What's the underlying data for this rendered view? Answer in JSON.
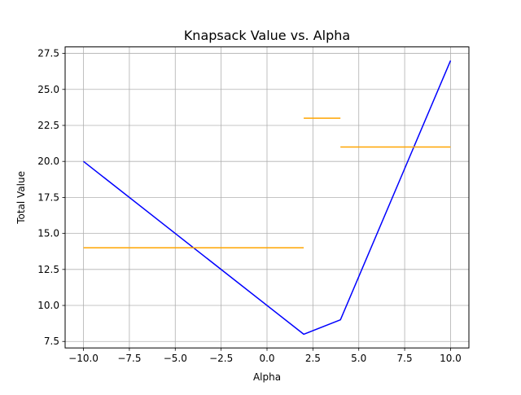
{
  "chart_data": {
    "type": "line",
    "title": "Knapsack Value vs. Alpha",
    "xlabel": "Alpha",
    "ylabel": "Total Value",
    "xlim": [
      -11,
      11
    ],
    "ylim": [
      7.05,
      27.95
    ],
    "grid": true,
    "x_ticks": [
      -10,
      -7.5,
      -5,
      -2.5,
      0,
      2.5,
      5,
      7.5,
      10
    ],
    "y_ticks": [
      7.5,
      10,
      12.5,
      15,
      17.5,
      20,
      22.5,
      25,
      27.5
    ],
    "x_tick_labels": [
      "−10.0",
      "−7.5",
      "−5.0",
      "−2.5",
      "0.0",
      "2.5",
      "5.0",
      "7.5",
      "10.0"
    ],
    "y_tick_labels": [
      "7.5",
      "10.0",
      "12.5",
      "15.0",
      "17.5",
      "20.0",
      "22.5",
      "25.0",
      "27.5"
    ],
    "series": [
      {
        "color": "#0000ff",
        "points": [
          [
            -10,
            20
          ],
          [
            2,
            8
          ],
          [
            4,
            9
          ],
          [
            10,
            27
          ]
        ]
      },
      {
        "color": "#ffa500",
        "segments": [
          [
            [
              -10,
              14
            ],
            [
              2,
              14
            ]
          ],
          [
            [
              2,
              23
            ],
            [
              4,
              23
            ]
          ],
          [
            [
              4,
              21
            ],
            [
              10,
              21
            ]
          ]
        ]
      }
    ]
  }
}
